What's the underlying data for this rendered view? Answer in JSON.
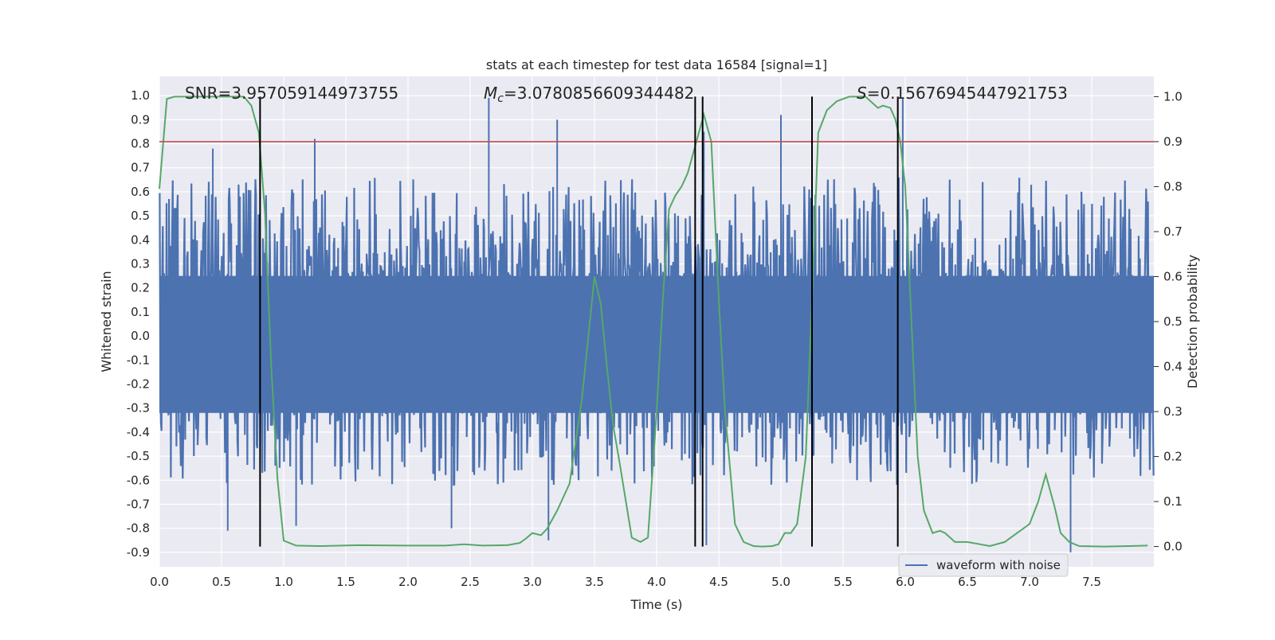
{
  "chart_data": {
    "type": "line",
    "title": "stats at each timestep for test data 16584 [signal=1]",
    "xlabel": "Time (s)",
    "ylabel_left": "Whitened strain",
    "ylabel_right": "Detection probability",
    "xlim": [
      0.0,
      8.0
    ],
    "ylim_left": [
      -0.96,
      1.08
    ],
    "ylim_right": [
      -0.045,
      1.045
    ],
    "x_ticks": [
      "0.0",
      "0.5",
      "1.0",
      "1.5",
      "2.0",
      "2.5",
      "3.0",
      "3.5",
      "4.0",
      "4.5",
      "5.0",
      "5.5",
      "6.0",
      "6.5",
      "7.0",
      "7.5"
    ],
    "y_ticks_left": [
      "1.0",
      "0.9",
      "0.8",
      "0.7",
      "0.6",
      "0.5",
      "0.4",
      "0.3",
      "0.2",
      "0.1",
      "0.0",
      "-0.1",
      "-0.2",
      "-0.3",
      "-0.4",
      "-0.5",
      "-0.6",
      "-0.7",
      "-0.8",
      "-0.9"
    ],
    "y_ticks_right": [
      "1.0",
      "0.9",
      "0.8",
      "0.7",
      "0.6",
      "0.5",
      "0.4",
      "0.3",
      "0.2",
      "0.1",
      "0.0"
    ],
    "grid": true,
    "background": "#eaeaf2",
    "annotations": {
      "snr": "SNR=3.957059144973755",
      "mc_symbol": "M",
      "mc_sub": "c",
      "mc_value": "=3.0780856609344482",
      "s_symbol": "S",
      "s_value": "=0.15676945447921753"
    },
    "threshold_line": {
      "y": 0.9,
      "axis": "right",
      "color": "#c44e52"
    },
    "vertical_lines": {
      "x": [
        0.81,
        4.31,
        4.37,
        5.25,
        5.94
      ],
      "color": "#000000"
    },
    "series": [
      {
        "name": "waveform with noise",
        "color": "#4c72b0",
        "axis": "left",
        "peaks": [
          {
            "x": 0.43,
            "y": 0.78
          },
          {
            "x": 1.25,
            "y": 0.82
          },
          {
            "x": 2.65,
            "y": 0.99
          },
          {
            "x": 3.2,
            "y": 0.9
          },
          {
            "x": 4.38,
            "y": 0.85
          },
          {
            "x": 5.0,
            "y": 0.92
          },
          {
            "x": 5.98,
            "y": 0.99
          },
          {
            "x": 0.55,
            "y": -0.81
          },
          {
            "x": 1.1,
            "y": -0.79
          },
          {
            "x": 2.35,
            "y": -0.8
          },
          {
            "x": 3.13,
            "y": -0.85
          },
          {
            "x": 4.4,
            "y": -0.87
          },
          {
            "x": 7.33,
            "y": -0.9
          }
        ]
      },
      {
        "name": "",
        "color": "#55a868",
        "axis": "right",
        "x": [
          0.0,
          0.06,
          0.12,
          0.3,
          0.5,
          0.6,
          0.68,
          0.74,
          0.8,
          0.85,
          0.9,
          0.95,
          1.0,
          1.1,
          1.3,
          1.6,
          2.0,
          2.3,
          2.45,
          2.6,
          2.8,
          2.9,
          2.95,
          3.0,
          3.07,
          3.12,
          3.2,
          3.3,
          3.4,
          3.5,
          3.55,
          3.6,
          3.65,
          3.7,
          3.8,
          3.87,
          3.93,
          4.0,
          4.05,
          4.1,
          4.15,
          4.2,
          4.25,
          4.3,
          4.34,
          4.38,
          4.44,
          4.5,
          4.55,
          4.63,
          4.7,
          4.78,
          4.85,
          4.93,
          4.98,
          5.03,
          5.08,
          5.13,
          5.2,
          5.25,
          5.3,
          5.37,
          5.45,
          5.55,
          5.68,
          5.78,
          5.82,
          5.88,
          5.92,
          5.96,
          6.0,
          6.05,
          6.1,
          6.15,
          6.22,
          6.28,
          6.32,
          6.4,
          6.5,
          6.6,
          6.68,
          6.8,
          6.9,
          7.0,
          7.07,
          7.13,
          7.2,
          7.25,
          7.32,
          7.4,
          7.6,
          7.8,
          7.95
        ],
        "values": [
          0.795,
          0.995,
          1.0,
          1.0,
          1.0,
          1.0,
          1.0,
          0.98,
          0.92,
          0.74,
          0.4,
          0.15,
          0.013,
          0.002,
          0.001,
          0.003,
          0.002,
          0.002,
          0.005,
          0.002,
          0.003,
          0.008,
          0.018,
          0.03,
          0.025,
          0.04,
          0.08,
          0.14,
          0.33,
          0.6,
          0.54,
          0.4,
          0.27,
          0.19,
          0.02,
          0.01,
          0.02,
          0.3,
          0.55,
          0.75,
          0.78,
          0.8,
          0.83,
          0.88,
          0.92,
          0.96,
          0.9,
          0.55,
          0.3,
          0.05,
          0.01,
          0.001,
          0.0,
          0.001,
          0.005,
          0.03,
          0.03,
          0.05,
          0.2,
          0.55,
          0.92,
          0.97,
          0.99,
          1.0,
          1.0,
          0.975,
          0.98,
          0.975,
          0.95,
          0.9,
          0.8,
          0.5,
          0.2,
          0.08,
          0.03,
          0.035,
          0.03,
          0.01,
          0.01,
          0.005,
          0.001,
          0.01,
          0.03,
          0.05,
          0.1,
          0.16,
          0.09,
          0.03,
          0.01,
          0.001,
          0.0,
          0.001,
          0.002
        ]
      }
    ],
    "legend": {
      "entries": [
        "waveform with noise"
      ],
      "position": "lower-right"
    }
  }
}
